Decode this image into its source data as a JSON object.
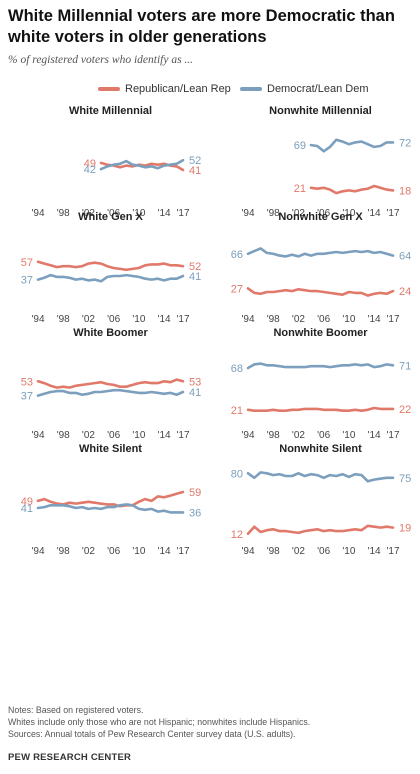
{
  "title": "White Millennial voters are more Democratic than white voters in older generations",
  "subtitle": "% of registered voters who identify as ...",
  "legend": {
    "republican": "Republican/Lean Rep",
    "democrat": "Democrat/Lean Dem"
  },
  "colors": {
    "republican": "#e0796a",
    "democrat": "#7b9fbd"
  },
  "notes": [
    "Notes: Based on registered voters.",
    "Whites include only those who are not Hispanic; nonwhites include Hispanics.",
    "Sources: Annual totals of Pew Research Center survey data (U.S. adults)."
  ],
  "source_org": "PEW RESEARCH CENTER",
  "chart_data": [
    {
      "type": "line",
      "title": "White Millennial",
      "x_ticks": [
        "'94",
        "'98",
        "'02",
        "'06",
        "'10",
        "'14",
        "'17"
      ],
      "xlim": [
        1994,
        2017
      ],
      "ylim": [
        0,
        100
      ],
      "series": [
        {
          "name": "Republican/Lean Rep",
          "x": [
            2004,
            2005,
            2006,
            2007,
            2008,
            2009,
            2010,
            2011,
            2012,
            2013,
            2014,
            2015,
            2016,
            2017
          ],
          "y": [
            49,
            47,
            46,
            44,
            46,
            45,
            47,
            46,
            48,
            47,
            48,
            46,
            45,
            41
          ],
          "start_label": "49",
          "end_label": "41"
        },
        {
          "name": "Democrat/Lean Dem",
          "x": [
            2004,
            2005,
            2006,
            2007,
            2008,
            2009,
            2010,
            2011,
            2012,
            2013,
            2014,
            2015,
            2016,
            2017
          ],
          "y": [
            42,
            45,
            47,
            48,
            51,
            47,
            46,
            44,
            45,
            43,
            46,
            47,
            48,
            52
          ],
          "start_label": "42",
          "end_label": "52"
        }
      ]
    },
    {
      "type": "line",
      "title": "Nonwhite Millennial",
      "x_ticks": [
        "'94",
        "'98",
        "'02",
        "'06",
        "'10",
        "'14",
        "'17"
      ],
      "xlim": [
        1994,
        2017
      ],
      "ylim": [
        0,
        100
      ],
      "series": [
        {
          "name": "Republican/Lean Rep",
          "x": [
            2004,
            2005,
            2006,
            2007,
            2008,
            2009,
            2010,
            2011,
            2012,
            2013,
            2014,
            2015,
            2016,
            2017
          ],
          "y": [
            21,
            20,
            21,
            19,
            15,
            17,
            18,
            17,
            19,
            20,
            23,
            21,
            19,
            18
          ],
          "start_label": "21",
          "end_label": "18"
        },
        {
          "name": "Democrat/Lean Dem",
          "x": [
            2004,
            2005,
            2006,
            2007,
            2008,
            2009,
            2010,
            2011,
            2012,
            2013,
            2014,
            2015,
            2016,
            2017
          ],
          "y": [
            69,
            68,
            62,
            67,
            75,
            73,
            70,
            72,
            73,
            70,
            67,
            68,
            72,
            72
          ],
          "start_label": "69",
          "end_label": "72"
        }
      ]
    },
    {
      "type": "line",
      "title": "White Gen X",
      "x_ticks": [
        "'94",
        "'98",
        "'02",
        "'06",
        "'10",
        "'14",
        "'17"
      ],
      "xlim": [
        1994,
        2017
      ],
      "ylim": [
        0,
        100
      ],
      "series": [
        {
          "name": "Republican/Lean Rep",
          "x": [
            1994,
            1995,
            1996,
            1997,
            1998,
            1999,
            2000,
            2001,
            2002,
            2003,
            2004,
            2005,
            2006,
            2007,
            2008,
            2009,
            2010,
            2011,
            2012,
            2013,
            2014,
            2015,
            2016,
            2017
          ],
          "y": [
            57,
            55,
            53,
            51,
            52,
            52,
            51,
            52,
            55,
            56,
            55,
            52,
            50,
            49,
            48,
            49,
            50,
            53,
            54,
            54,
            55,
            53,
            53,
            52
          ],
          "start_label": "57",
          "end_label": "52"
        },
        {
          "name": "Democrat/Lean Dem",
          "x": [
            1994,
            1995,
            1996,
            1997,
            1998,
            1999,
            2000,
            2001,
            2002,
            2003,
            2004,
            2005,
            2006,
            2007,
            2008,
            2009,
            2010,
            2011,
            2012,
            2013,
            2014,
            2015,
            2016,
            2017
          ],
          "y": [
            37,
            39,
            42,
            40,
            40,
            39,
            37,
            38,
            36,
            37,
            35,
            40,
            41,
            41,
            42,
            41,
            40,
            38,
            37,
            38,
            36,
            38,
            38,
            41
          ],
          "start_label": "37",
          "end_label": "41"
        }
      ]
    },
    {
      "type": "line",
      "title": "Nonwhite Gen X",
      "x_ticks": [
        "'94",
        "'98",
        "'02",
        "'06",
        "'10",
        "'14",
        "'17"
      ],
      "xlim": [
        1994,
        2017
      ],
      "ylim": [
        0,
        100
      ],
      "series": [
        {
          "name": "Republican/Lean Rep",
          "x": [
            1994,
            1995,
            1996,
            1997,
            1998,
            1999,
            2000,
            2001,
            2002,
            2003,
            2004,
            2005,
            2006,
            2007,
            2008,
            2009,
            2010,
            2011,
            2012,
            2013,
            2014,
            2015,
            2016,
            2017
          ],
          "y": [
            27,
            22,
            21,
            23,
            23,
            24,
            25,
            24,
            26,
            25,
            24,
            24,
            23,
            22,
            21,
            20,
            23,
            22,
            22,
            19,
            21,
            22,
            21,
            24
          ],
          "start_label": "27",
          "end_label": "24"
        },
        {
          "name": "Democrat/Lean Dem",
          "x": [
            1994,
            1995,
            1996,
            1997,
            1998,
            1999,
            2000,
            2001,
            2002,
            2003,
            2004,
            2005,
            2006,
            2007,
            2008,
            2009,
            2010,
            2011,
            2012,
            2013,
            2014,
            2015,
            2016,
            2017
          ],
          "y": [
            66,
            69,
            72,
            67,
            66,
            64,
            63,
            65,
            63,
            66,
            64,
            66,
            66,
            67,
            68,
            67,
            68,
            69,
            68,
            69,
            67,
            68,
            66,
            64
          ],
          "start_label": "66",
          "end_label": "64"
        }
      ]
    },
    {
      "type": "line",
      "title": "White Boomer",
      "x_ticks": [
        "'94",
        "'98",
        "'02",
        "'06",
        "'10",
        "'14",
        "'17"
      ],
      "xlim": [
        1994,
        2017
      ],
      "ylim": [
        0,
        100
      ],
      "series": [
        {
          "name": "Republican/Lean Rep",
          "x": [
            1994,
            1995,
            1996,
            1997,
            1998,
            1999,
            2000,
            2001,
            2002,
            2003,
            2004,
            2005,
            2006,
            2007,
            2008,
            2009,
            2010,
            2011,
            2012,
            2013,
            2014,
            2015,
            2016,
            2017
          ],
          "y": [
            53,
            51,
            48,
            46,
            47,
            46,
            48,
            49,
            50,
            51,
            52,
            50,
            49,
            47,
            47,
            49,
            51,
            52,
            51,
            51,
            53,
            52,
            55,
            53
          ],
          "start_label": "53",
          "end_label": "53"
        },
        {
          "name": "Democrat/Lean Dem",
          "x": [
            1994,
            1995,
            1996,
            1997,
            1998,
            1999,
            2000,
            2001,
            2002,
            2003,
            2004,
            2005,
            2006,
            2007,
            2008,
            2009,
            2010,
            2011,
            2012,
            2013,
            2014,
            2015,
            2016,
            2017
          ],
          "y": [
            37,
            39,
            41,
            42,
            42,
            40,
            40,
            38,
            39,
            41,
            41,
            42,
            43,
            43,
            42,
            41,
            40,
            40,
            41,
            40,
            39,
            40,
            38,
            41
          ],
          "start_label": "37",
          "end_label": "41"
        }
      ]
    },
    {
      "type": "line",
      "title": "Nonwhite Boomer",
      "x_ticks": [
        "'94",
        "'98",
        "'02",
        "'06",
        "'10",
        "'14",
        "'17"
      ],
      "xlim": [
        1994,
        2017
      ],
      "ylim": [
        0,
        100
      ],
      "series": [
        {
          "name": "Republican/Lean Rep",
          "x": [
            1994,
            1995,
            1996,
            1997,
            1998,
            1999,
            2000,
            2001,
            2002,
            2003,
            2004,
            2005,
            2006,
            2007,
            2008,
            2009,
            2010,
            2011,
            2012,
            2013,
            2014,
            2015,
            2016,
            2017
          ],
          "y": [
            21,
            20,
            20,
            20,
            21,
            20,
            20,
            21,
            21,
            22,
            22,
            22,
            21,
            21,
            21,
            20,
            20,
            21,
            20,
            21,
            23,
            22,
            22,
            22
          ],
          "start_label": "21",
          "end_label": "22"
        },
        {
          "name": "Democrat/Lean Dem",
          "x": [
            1994,
            1995,
            1996,
            1997,
            1998,
            1999,
            2000,
            2001,
            2002,
            2003,
            2004,
            2005,
            2006,
            2007,
            2008,
            2009,
            2010,
            2011,
            2012,
            2013,
            2014,
            2015,
            2016,
            2017
          ],
          "y": [
            68,
            72,
            73,
            71,
            71,
            70,
            69,
            69,
            69,
            69,
            70,
            70,
            70,
            69,
            70,
            71,
            71,
            72,
            71,
            72,
            69,
            70,
            72,
            71
          ],
          "start_label": "68",
          "end_label": "71"
        }
      ]
    },
    {
      "type": "line",
      "title": "White Silent",
      "x_ticks": [
        "'94",
        "'98",
        "'02",
        "'06",
        "'10",
        "'14",
        "'17"
      ],
      "xlim": [
        1994,
        2017
      ],
      "ylim": [
        0,
        100
      ],
      "series": [
        {
          "name": "Republican/Lean Rep",
          "x": [
            1994,
            1995,
            1996,
            1997,
            1998,
            1999,
            2000,
            2001,
            2002,
            2003,
            2004,
            2005,
            2006,
            2007,
            2008,
            2009,
            2010,
            2011,
            2012,
            2013,
            2014,
            2015,
            2016,
            2017
          ],
          "y": [
            49,
            51,
            48,
            46,
            45,
            47,
            46,
            47,
            48,
            47,
            46,
            45,
            45,
            43,
            44,
            44,
            48,
            51,
            49,
            54,
            53,
            55,
            57,
            59
          ],
          "start_label": "49",
          "end_label": "59"
        },
        {
          "name": "Democrat/Lean Dem",
          "x": [
            1994,
            1995,
            1996,
            1997,
            1998,
            1999,
            2000,
            2001,
            2002,
            2003,
            2004,
            2005,
            2006,
            2007,
            2008,
            2009,
            2010,
            2011,
            2012,
            2013,
            2014,
            2015,
            2016,
            2017
          ],
          "y": [
            41,
            42,
            44,
            44,
            44,
            43,
            41,
            42,
            40,
            41,
            40,
            42,
            42,
            44,
            45,
            44,
            40,
            39,
            40,
            37,
            38,
            36,
            36,
            36
          ],
          "start_label": "41",
          "end_label": "36"
        }
      ]
    },
    {
      "type": "line",
      "title": "Nonwhite Silent",
      "x_ticks": [
        "'94",
        "'98",
        "'02",
        "'06",
        "'10",
        "'14",
        "'17"
      ],
      "xlim": [
        1994,
        2017
      ],
      "ylim": [
        0,
        100
      ],
      "series": [
        {
          "name": "Republican/Lean Rep",
          "x": [
            1994,
            1995,
            1996,
            1997,
            1998,
            1999,
            2000,
            2001,
            2002,
            2003,
            2004,
            2005,
            2006,
            2007,
            2008,
            2009,
            2010,
            2011,
            2012,
            2013,
            2014,
            2015,
            2016,
            2017
          ],
          "y": [
            12,
            20,
            14,
            16,
            17,
            15,
            15,
            14,
            13,
            15,
            16,
            17,
            15,
            16,
            15,
            15,
            16,
            17,
            16,
            21,
            20,
            19,
            20,
            19
          ],
          "start_label": "12",
          "end_label": "19"
        },
        {
          "name": "Democrat/Lean Dem",
          "x": [
            1994,
            1995,
            1996,
            1997,
            1998,
            1999,
            2000,
            2001,
            2002,
            2003,
            2004,
            2005,
            2006,
            2007,
            2008,
            2009,
            2010,
            2011,
            2012,
            2013,
            2014,
            2015,
            2016,
            2017
          ],
          "y": [
            80,
            75,
            81,
            80,
            78,
            79,
            77,
            77,
            80,
            77,
            79,
            78,
            75,
            78,
            77,
            79,
            76,
            79,
            78,
            71,
            73,
            74,
            75,
            75
          ],
          "start_label": "80",
          "end_label": "75"
        }
      ]
    }
  ]
}
